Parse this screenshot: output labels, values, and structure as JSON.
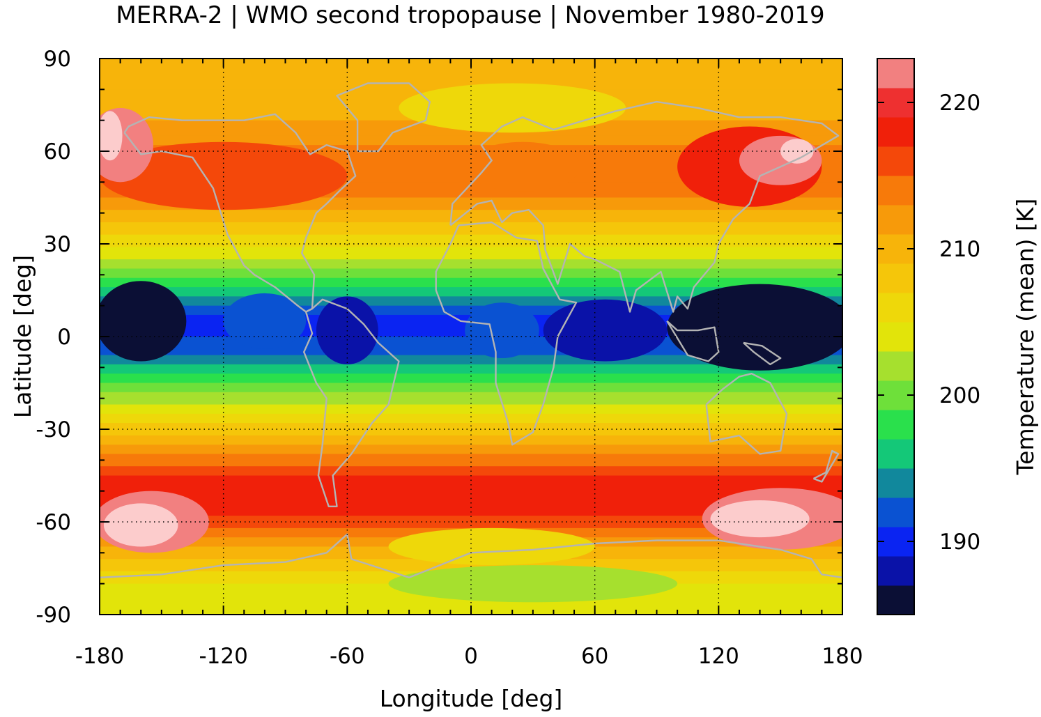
{
  "chart_data": {
    "type": "heatmap",
    "title": "MERRA-2 | WMO second tropopause | November 1980-2019",
    "xlabel": "Longitude [deg]",
    "ylabel": "Latitude [deg]",
    "colorbar_label": "Temperature (mean) [K]",
    "xlim": [
      -180,
      180
    ],
    "ylim": [
      -90,
      90
    ],
    "x_ticks": [
      -180,
      -120,
      -60,
      0,
      60,
      120,
      180
    ],
    "y_ticks": [
      90,
      60,
      30,
      0,
      -30,
      -60,
      -90
    ],
    "colorbar_range": [
      185,
      223
    ],
    "colorbar_ticks": [
      190,
      200,
      210,
      220
    ],
    "grid": true,
    "coastlines": "gray",
    "colorbar_bands": [
      {
        "from": 185,
        "to": 187,
        "color": "#0b0f35"
      },
      {
        "from": 187,
        "to": 189,
        "color": "#0a12a8"
      },
      {
        "from": 189,
        "to": 191,
        "color": "#0a24f2"
      },
      {
        "from": 191,
        "to": 193,
        "color": "#0a52d2"
      },
      {
        "from": 193,
        "to": 195,
        "color": "#11889c"
      },
      {
        "from": 195,
        "to": 197,
        "color": "#14c878"
      },
      {
        "from": 197,
        "to": 199,
        "color": "#2ae04c"
      },
      {
        "from": 199,
        "to": 201,
        "color": "#6ee03a"
      },
      {
        "from": 201,
        "to": 203,
        "color": "#a6e02e"
      },
      {
        "from": 203,
        "to": 205,
        "color": "#e2e40a"
      },
      {
        "from": 205,
        "to": 207,
        "color": "#eed80a"
      },
      {
        "from": 207,
        "to": 209,
        "color": "#f5c60a"
      },
      {
        "from": 209,
        "to": 211,
        "color": "#f7b40a"
      },
      {
        "from": 211,
        "to": 213,
        "color": "#f79a0a"
      },
      {
        "from": 213,
        "to": 215,
        "color": "#f77a0a"
      },
      {
        "from": 215,
        "to": 217,
        "color": "#f4480a"
      },
      {
        "from": 217,
        "to": 219,
        "color": "#f0200a"
      },
      {
        "from": 219,
        "to": 221,
        "color": "#ee3030"
      },
      {
        "from": 221,
        "to": 223,
        "color": "#f28080"
      },
      {
        "from": 223,
        "to": 225,
        "color": "#fccccc"
      }
    ],
    "zonal_mean_profile": {
      "lat": [
        -90,
        -80,
        -70,
        -60,
        -55,
        -45,
        -35,
        -25,
        -15,
        -5,
        5,
        15,
        25,
        35,
        45,
        55,
        65,
        75,
        85,
        90
      ],
      "temp_K": [
        204,
        205,
        210,
        216,
        218,
        217,
        211,
        205,
        199,
        192,
        190,
        196,
        203,
        208,
        213,
        215,
        212,
        210,
        209,
        209
      ]
    }
  }
}
